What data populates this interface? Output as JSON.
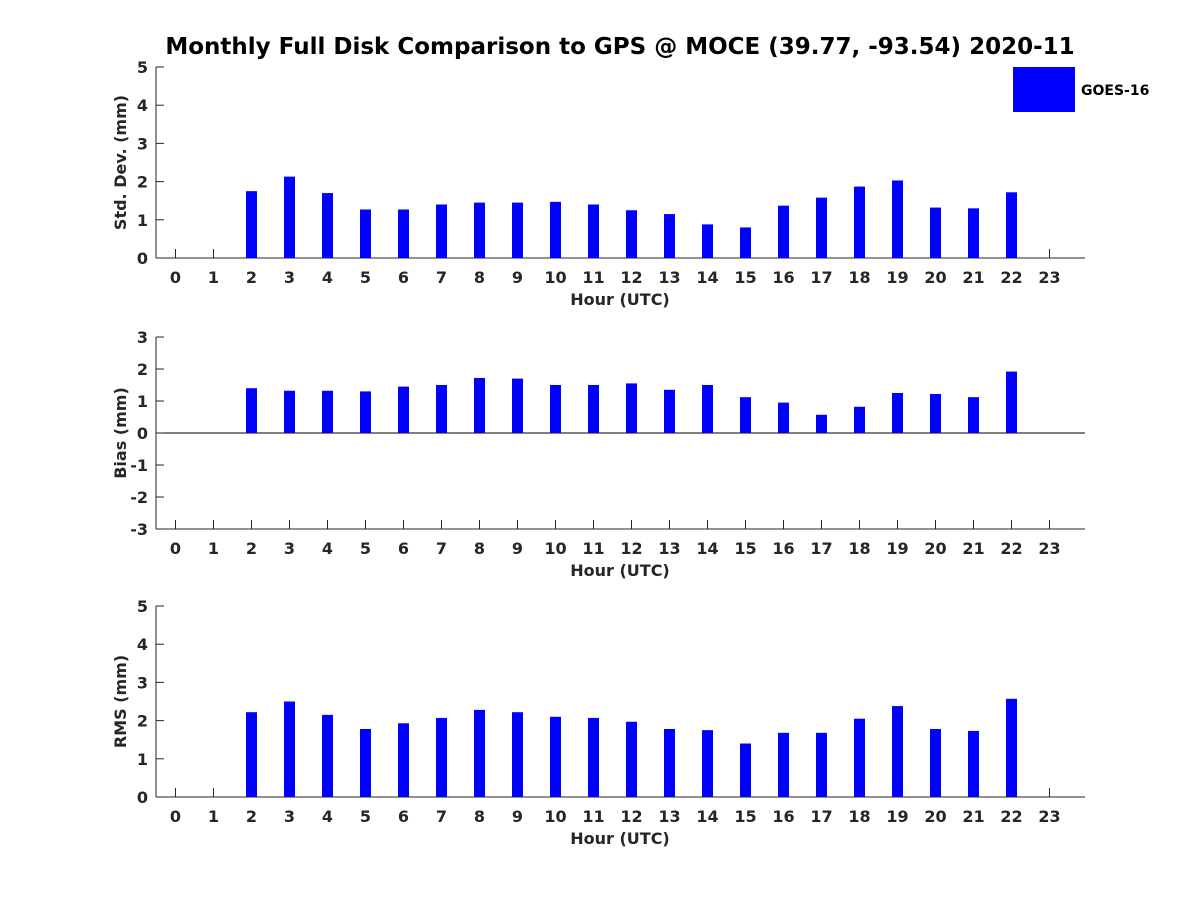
{
  "figure": {
    "title": "Monthly Full Disk Comparison to GPS @ MOCE (39.77, -93.54) 2020-11"
  },
  "legend": {
    "label": "GOES-16",
    "color": "#0000ff",
    "placement": "top-right"
  },
  "chart_data": [
    {
      "type": "bar",
      "xlabel": "Hour (UTC)",
      "ylabel": "Std. Dev. (mm)",
      "ylim": [
        0,
        5
      ],
      "yticks": [
        0,
        1,
        2,
        3,
        4,
        5
      ],
      "x": [
        0,
        1,
        2,
        3,
        4,
        5,
        6,
        7,
        8,
        9,
        10,
        11,
        12,
        13,
        14,
        15,
        16,
        17,
        18,
        19,
        20,
        21,
        22,
        23
      ],
      "x_tick_labels": [
        "0",
        "1",
        "2",
        "3",
        "4",
        "5",
        "6",
        "7",
        "8",
        "9",
        "10",
        "11",
        "12",
        "13",
        "14",
        "15",
        "16",
        "17",
        "18",
        "19",
        "20",
        "21",
        "22",
        "23"
      ],
      "series": [
        {
          "name": "GOES-16",
          "color": "#0000ff",
          "values": [
            null,
            null,
            1.75,
            2.13,
            1.7,
            1.27,
            1.27,
            1.4,
            1.45,
            1.45,
            1.47,
            1.4,
            1.25,
            1.15,
            0.88,
            0.8,
            1.37,
            1.58,
            1.87,
            2.03,
            1.32,
            1.3,
            1.72,
            null
          ]
        }
      ]
    },
    {
      "type": "bar",
      "xlabel": "Hour (UTC)",
      "ylabel": "Bias (mm)",
      "ylim": [
        -3,
        3
      ],
      "yticks": [
        -3,
        -2,
        -1,
        0,
        1,
        2,
        3
      ],
      "baseline": 0,
      "x": [
        0,
        1,
        2,
        3,
        4,
        5,
        6,
        7,
        8,
        9,
        10,
        11,
        12,
        13,
        14,
        15,
        16,
        17,
        18,
        19,
        20,
        21,
        22,
        23
      ],
      "x_tick_labels": [
        "0",
        "1",
        "2",
        "3",
        "4",
        "5",
        "6",
        "7",
        "8",
        "9",
        "10",
        "11",
        "12",
        "13",
        "14",
        "15",
        "16",
        "17",
        "18",
        "19",
        "20",
        "21",
        "22",
        "23"
      ],
      "series": [
        {
          "name": "GOES-16",
          "color": "#0000ff",
          "values": [
            null,
            null,
            1.4,
            1.32,
            1.32,
            1.3,
            1.45,
            1.5,
            1.72,
            1.7,
            1.5,
            1.5,
            1.55,
            1.35,
            1.5,
            1.12,
            0.95,
            0.57,
            0.82,
            1.25,
            1.22,
            1.12,
            1.92,
            null
          ]
        }
      ]
    },
    {
      "type": "bar",
      "xlabel": "Hour (UTC)",
      "ylabel": "RMS (mm)",
      "ylim": [
        0,
        5
      ],
      "yticks": [
        0,
        1,
        2,
        3,
        4,
        5
      ],
      "x": [
        0,
        1,
        2,
        3,
        4,
        5,
        6,
        7,
        8,
        9,
        10,
        11,
        12,
        13,
        14,
        15,
        16,
        17,
        18,
        19,
        20,
        21,
        22,
        23
      ],
      "x_tick_labels": [
        "0",
        "1",
        "2",
        "3",
        "4",
        "5",
        "6",
        "7",
        "8",
        "9",
        "10",
        "11",
        "12",
        "13",
        "14",
        "15",
        "16",
        "17",
        "18",
        "19",
        "20",
        "21",
        "22",
        "23"
      ],
      "series": [
        {
          "name": "GOES-16",
          "color": "#0000ff",
          "values": [
            null,
            null,
            2.22,
            2.5,
            2.15,
            1.78,
            1.93,
            2.07,
            2.28,
            2.22,
            2.1,
            2.07,
            1.97,
            1.78,
            1.75,
            1.4,
            1.68,
            1.68,
            2.05,
            2.38,
            1.78,
            1.73,
            2.57,
            null
          ]
        }
      ]
    }
  ]
}
